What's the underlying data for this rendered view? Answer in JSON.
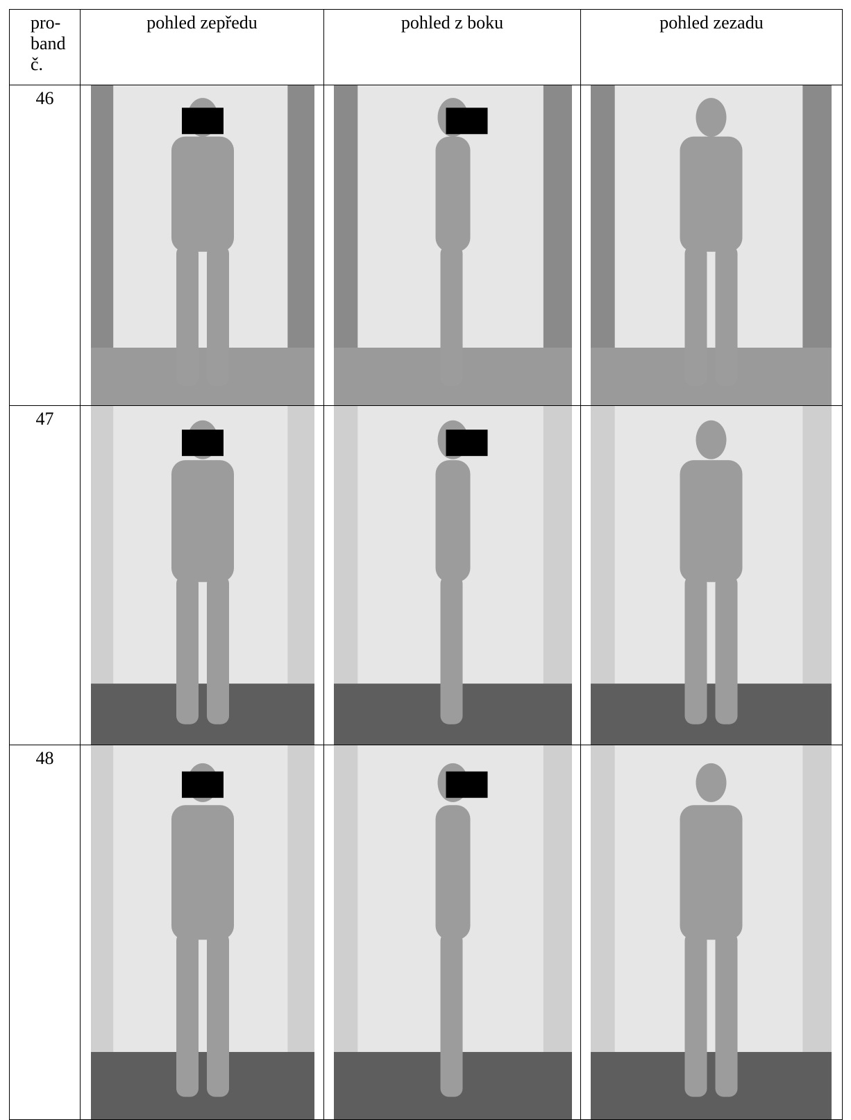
{
  "table": {
    "header": [
      "pro- band č.",
      "pohled zepředu",
      "pohled z boku",
      "pohled zezadu"
    ],
    "rows": [
      {
        "proband": "46"
      },
      {
        "proband": "47"
      },
      {
        "proband": "48"
      }
    ]
  }
}
